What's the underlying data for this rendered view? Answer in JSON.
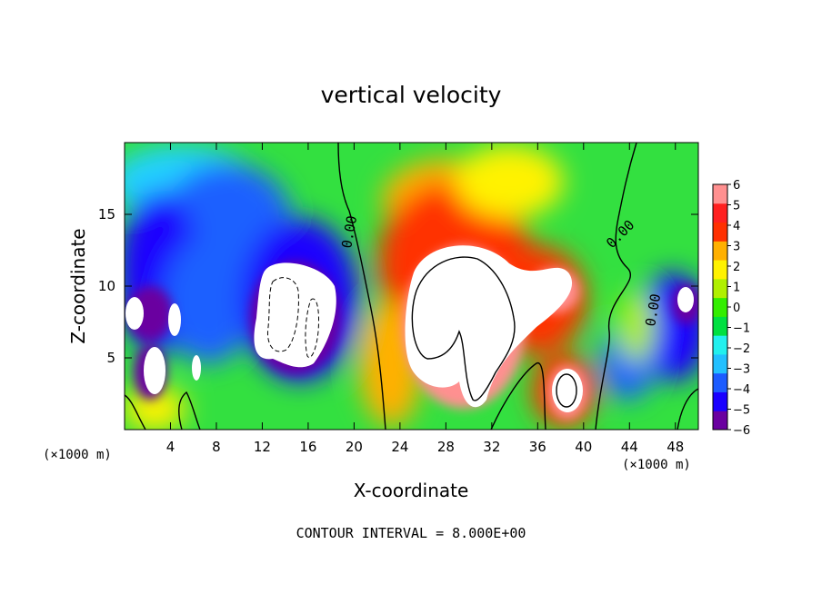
{
  "chart_data": {
    "type": "heatmap",
    "title": "vertical velocity",
    "xlabel": "X-coordinate",
    "ylabel": "Z-coordinate",
    "x_unit": "(×1000 m)",
    "x_unit_right": "(×1000 m)",
    "xlim": [
      0,
      50
    ],
    "ylim": [
      0,
      20
    ],
    "x_ticks": [
      4,
      8,
      12,
      16,
      20,
      24,
      28,
      32,
      36,
      40,
      44,
      48
    ],
    "y_ticks": [
      5,
      10,
      15
    ],
    "colorbar": {
      "range": [
        -6,
        6
      ],
      "labels": [
        "6",
        "5",
        "4",
        "3",
        "2",
        "1",
        "0",
        "−1",
        "−2",
        "−3",
        "−4",
        "−5",
        "−6"
      ],
      "colors": [
        "#6a00a0",
        "#1a00ff",
        "#1c5cff",
        "#22c0ff",
        "#22f0ee",
        "#00e040",
        "#33ee00",
        "#b0f000",
        "#fff200",
        "#ffb000",
        "#ff3000",
        "#ff2020",
        "#ff9090"
      ]
    },
    "contour_labels": [
      "0.00",
      "0.00",
      "0.00"
    ],
    "footer": "CONTOUR INTERVAL = 8.000E+00"
  }
}
